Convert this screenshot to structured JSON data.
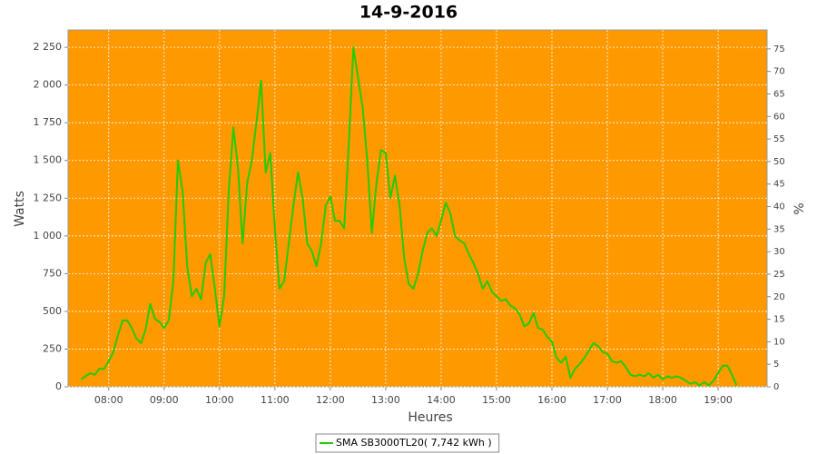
{
  "chart_data": {
    "type": "line",
    "title": "14-9-2016",
    "x_label": "Heures",
    "y_label": "Watts",
    "y2_label": "%",
    "background": "#ff9900",
    "grid": true,
    "xlim": [
      "07:16",
      "19:53"
    ],
    "xticks": [
      "08:00",
      "09:00",
      "10:00",
      "11:00",
      "12:00",
      "13:00",
      "14:00",
      "15:00",
      "16:00",
      "17:00",
      "18:00",
      "19:00"
    ],
    "ylim": [
      0,
      2365
    ],
    "yticks": [
      0,
      250,
      500,
      750,
      {
        "value": 1000,
        "label": "1 000"
      },
      {
        "value": 1250,
        "label": "1 250"
      },
      {
        "value": 1500,
        "label": "1 500"
      },
      {
        "value": 1750,
        "label": "1 750"
      },
      {
        "value": 2000,
        "label": "2 000"
      },
      {
        "value": 2250,
        "label": "2 250"
      }
    ],
    "y2lim": [
      0,
      79.2
    ],
    "y2ticks": [
      0,
      5,
      10,
      15,
      20,
      25,
      30,
      35,
      40,
      45,
      50,
      55,
      60,
      65,
      70,
      75
    ],
    "x": [
      "07:30",
      "07:35",
      "07:40",
      "07:45",
      "07:50",
      "07:55",
      "08:00",
      "08:05",
      "08:10",
      "08:15",
      "08:20",
      "08:25",
      "08:30",
      "08:35",
      "08:40",
      "08:45",
      "08:50",
      "08:55",
      "09:00",
      "09:05",
      "09:10",
      "09:15",
      "09:20",
      "09:25",
      "09:30",
      "09:35",
      "09:40",
      "09:45",
      "09:50",
      "09:55",
      "10:00",
      "10:05",
      "10:10",
      "10:15",
      "10:20",
      "10:25",
      "10:30",
      "10:35",
      "10:40",
      "10:45",
      "10:50",
      "10:55",
      "11:00",
      "11:05",
      "11:10",
      "11:15",
      "11:20",
      "11:25",
      "11:30",
      "11:35",
      "11:40",
      "11:45",
      "11:50",
      "11:55",
      "12:00",
      "12:05",
      "12:10",
      "12:15",
      "12:20",
      "12:25",
      "12:30",
      "12:35",
      "12:40",
      "12:45",
      "12:50",
      "12:55",
      "13:00",
      "13:05",
      "13:10",
      "13:15",
      "13:20",
      "13:25",
      "13:30",
      "13:35",
      "13:40",
      "13:45",
      "13:50",
      "13:55",
      "14:00",
      "14:05",
      "14:10",
      "14:15",
      "14:20",
      "14:25",
      "14:30",
      "14:35",
      "14:40",
      "14:45",
      "14:50",
      "14:55",
      "15:00",
      "15:05",
      "15:10",
      "15:15",
      "15:20",
      "15:25",
      "15:30",
      "15:35",
      "15:40",
      "15:45",
      "15:50",
      "15:55",
      "16:00",
      "16:05",
      "16:10",
      "16:15",
      "16:20",
      "16:25",
      "16:30",
      "16:35",
      "16:40",
      "16:45",
      "16:50",
      "16:55",
      "17:00",
      "17:05",
      "17:10",
      "17:15",
      "17:20",
      "17:25",
      "17:30",
      "17:35",
      "17:40",
      "17:45",
      "17:50",
      "17:55",
      "18:00",
      "18:05",
      "18:10",
      "18:15",
      "18:20",
      "18:25",
      "18:30",
      "18:35",
      "18:40",
      "18:45",
      "18:50",
      "18:55",
      "19:00",
      "19:05",
      "19:10",
      "19:15",
      "19:20"
    ],
    "series": [
      {
        "name": "SMA SB3000TL20( 7,742 kWh )",
        "color": "#22cc00",
        "values": [
          50,
          70,
          90,
          80,
          120,
          120,
          170,
          230,
          340,
          440,
          440,
          390,
          320,
          290,
          380,
          550,
          450,
          430,
          390,
          440,
          700,
          1500,
          1300,
          800,
          600,
          650,
          580,
          820,
          880,
          650,
          400,
          600,
          1300,
          1720,
          1450,
          950,
          1350,
          1500,
          1750,
          2030,
          1420,
          1550,
          1050,
          650,
          700,
          950,
          1200,
          1420,
          1250,
          950,
          900,
          800,
          950,
          1200,
          1260,
          1100,
          1100,
          1050,
          1600,
          2250,
          2050,
          1850,
          1500,
          1020,
          1350,
          1570,
          1550,
          1250,
          1400,
          1200,
          850,
          680,
          650,
          750,
          900,
          1020,
          1050,
          1000,
          1100,
          1220,
          1150,
          1000,
          970,
          950,
          880,
          820,
          750,
          650,
          700,
          630,
          600,
          570,
          580,
          540,
          520,
          480,
          400,
          420,
          490,
          390,
          380,
          330,
          300,
          190,
          160,
          200,
          60,
          120,
          150,
          190,
          240,
          290,
          270,
          230,
          220,
          170,
          160,
          170,
          130,
          80,
          70,
          80,
          70,
          90,
          60,
          80,
          50,
          70,
          60,
          70,
          60,
          40,
          20,
          30,
          10,
          30,
          10,
          40,
          90,
          140,
          140,
          80,
          10
        ]
      }
    ]
  }
}
